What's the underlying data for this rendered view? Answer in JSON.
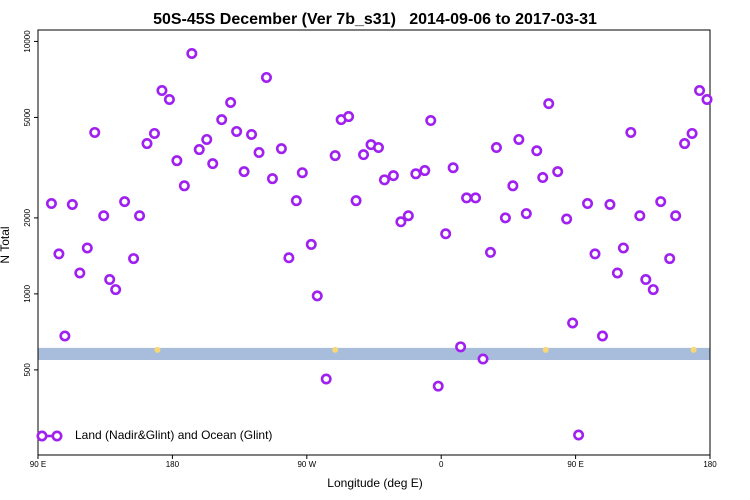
{
  "chart_data": {
    "type": "scatter",
    "title": "50S-45S December (Ver 7b_s31)   2014-09-06 to 2017-03-31",
    "x_label": "Longitude (deg E)",
    "y_label": "N Total",
    "log_y": true,
    "legend": "lower left",
    "xlim": [
      90,
      540
    ],
    "xticks": [
      {
        "value": 90,
        "label": "90 E"
      },
      {
        "value": 180,
        "label": "180"
      },
      {
        "value": 270,
        "label": "90 W"
      },
      {
        "value": 360,
        "label": "0"
      },
      {
        "value": 450,
        "label": "90 E"
      },
      {
        "value": 540,
        "label": "180"
      }
    ],
    "ylim": [
      230,
      11100
    ],
    "yticks": [
      500,
      1000,
      2000,
      5000,
      10000
    ],
    "band": {
      "color": "#a7bddb",
      "range": [
        547,
        611
      ]
    },
    "markers": {
      "color": "#f7d774",
      "x": [
        170,
        289,
        430,
        529
      ],
      "values": [
        600,
        600,
        600,
        600
      ]
    },
    "series": [
      {
        "name": "Land (Nadir&Glint) and Ocean (Glint)",
        "color": "#a020f0",
        "x": [
          99,
          104,
          108,
          113,
          118,
          123,
          128,
          134,
          138,
          142,
          148,
          154,
          158,
          163,
          168,
          173,
          178,
          183,
          188,
          193,
          198,
          203,
          207,
          213,
          219,
          223,
          228,
          233,
          238,
          243,
          247,
          253,
          258,
          263,
          267,
          273,
          277,
          283,
          289,
          293,
          298,
          303,
          308,
          313,
          318,
          322,
          328,
          333,
          338,
          343,
          349,
          353,
          358,
          363,
          368,
          373,
          377,
          383,
          388,
          393,
          397,
          403,
          408,
          412,
          417,
          424,
          428,
          432,
          438,
          444,
          448,
          452,
          458,
          463,
          468,
          473,
          478,
          482,
          487,
          493,
          497,
          502,
          507,
          513,
          517,
          523,
          528,
          533,
          538
        ],
        "values": [
          2280,
          1440,
          681,
          2260,
          1210,
          1520,
          4360,
          2040,
          1140,
          1040,
          2320,
          1380,
          2040,
          3940,
          4320,
          6390,
          5890,
          3370,
          2680,
          8960,
          3730,
          4090,
          3280,
          4900,
          5730,
          4400,
          3050,
          4280,
          3630,
          7200,
          2860,
          3760,
          1390,
          2340,
          3020,
          1570,
          982,
          460,
          3530,
          4900,
          5040,
          2340,
          3560,
          3900,
          3800,
          2830,
          2940,
          1930,
          2040,
          2990,
          3080,
          4860,
          431,
          1730,
          3160,
          617,
          2400,
          2400,
          552,
          1460,
          3800,
          2000,
          2680,
          4090,
          2080,
          3690,
          2890,
          5670,
          3050,
          1980,
          767,
          276,
          2280,
          1440,
          681,
          2260,
          1210,
          1520,
          4360,
          2040,
          1140,
          1040,
          2320,
          1380,
          2040,
          3940,
          4320,
          6390,
          5890
        ]
      }
    ]
  }
}
